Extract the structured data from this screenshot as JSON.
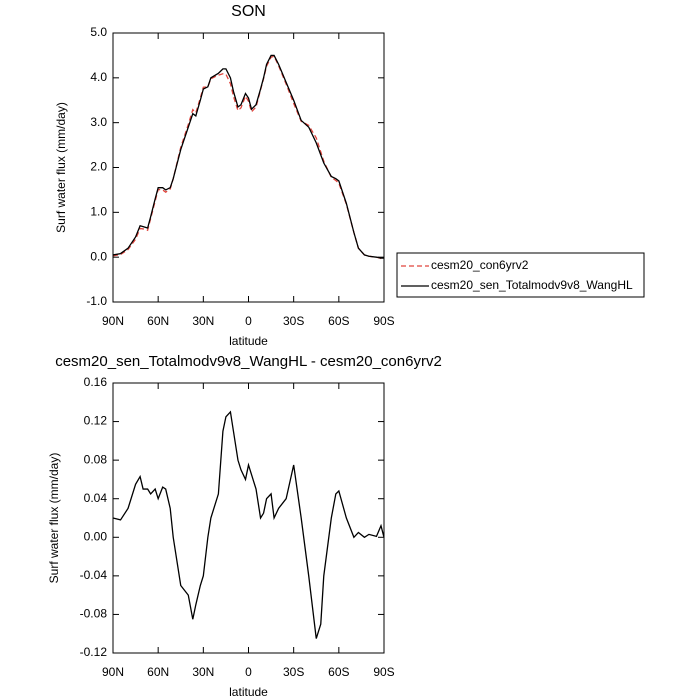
{
  "chart_data": [
    {
      "type": "line",
      "title": "SON",
      "xlabel": "latitude",
      "ylabel": "Surf water flux (mm/day)",
      "x": [
        90,
        85,
        80,
        75,
        72,
        70,
        67,
        65,
        62,
        60,
        57,
        55,
        52,
        50,
        45,
        40,
        37,
        35,
        32,
        30,
        27,
        25,
        20,
        17,
        15,
        12,
        10,
        7,
        5,
        2,
        0,
        -2,
        -5,
        -8,
        -10,
        -12,
        -15,
        -17,
        -20,
        -25,
        -30,
        -35,
        -40,
        -45,
        -50,
        -55,
        -58,
        -60,
        -65,
        -70,
        -73,
        -77,
        -80,
        -85,
        -88,
        -90
      ],
      "series": [
        {
          "name": "cesm20_con6yrv2",
          "color": "#e0443c",
          "dashed": true,
          "values": [
            0.03,
            0.06,
            0.17,
            0.4,
            0.64,
            0.63,
            0.6,
            0.86,
            1.25,
            1.51,
            1.5,
            1.45,
            1.52,
            1.75,
            2.45,
            2.96,
            3.29,
            3.22,
            3.55,
            3.79,
            3.8,
            3.98,
            4.06,
            4.09,
            4.08,
            3.87,
            3.59,
            3.27,
            3.33,
            3.59,
            3.48,
            3.24,
            3.35,
            3.73,
            3.98,
            4.26,
            4.46,
            4.48,
            4.27,
            3.86,
            3.43,
            3.03,
            2.94,
            2.66,
            2.14,
            1.78,
            1.71,
            1.65,
            1.18,
            0.55,
            0.2,
            0.05,
            0.02,
            0.0,
            -0.03,
            -0.02
          ]
        },
        {
          "name": "cesm20_sen_Totalmodv9v8_WangHL",
          "color": "#000000",
          "dashed": false,
          "values": [
            0.05,
            0.08,
            0.2,
            0.45,
            0.7,
            0.68,
            0.65,
            0.9,
            1.3,
            1.55,
            1.55,
            1.5,
            1.55,
            1.75,
            2.4,
            2.9,
            3.2,
            3.15,
            3.5,
            3.75,
            3.8,
            4.0,
            4.1,
            4.2,
            4.2,
            4.0,
            3.7,
            3.35,
            3.4,
            3.65,
            3.55,
            3.3,
            3.4,
            3.75,
            4.0,
            4.3,
            4.5,
            4.5,
            4.3,
            3.9,
            3.5,
            3.05,
            2.9,
            2.55,
            2.1,
            1.8,
            1.75,
            1.7,
            1.2,
            0.55,
            0.2,
            0.05,
            0.02,
            0.0,
            -0.02,
            -0.02
          ]
        }
      ],
      "xlim": [
        90,
        -90
      ],
      "xticks": [
        {
          "value": 90,
          "label": "90N"
        },
        {
          "value": 60,
          "label": "60N"
        },
        {
          "value": 30,
          "label": "30N"
        },
        0,
        {
          "value": -30,
          "label": "30S"
        },
        {
          "value": -60,
          "label": "60S"
        },
        {
          "value": -90,
          "label": "90S"
        }
      ],
      "ylim": [
        -1,
        5
      ],
      "yticks": [
        {
          "value": -1,
          "label": "-1.0"
        },
        {
          "value": 0,
          "label": "0.0"
        },
        {
          "value": 1,
          "label": "1.0"
        },
        {
          "value": 2,
          "label": "2.0"
        },
        {
          "value": 3,
          "label": "3.0"
        },
        {
          "value": 4,
          "label": "4.0"
        },
        {
          "value": 5,
          "label": "5.0"
        }
      ],
      "legend": "outside-right"
    },
    {
      "type": "line",
      "title": "cesm20_sen_Totalmodv9v8_WangHL - cesm20_con6yrv2",
      "xlabel": "latitude",
      "ylabel": "Surf water flux (mm/day)",
      "x": [
        90,
        85,
        80,
        75,
        72,
        70,
        67,
        65,
        62,
        60,
        57,
        55,
        52,
        50,
        45,
        40,
        37,
        35,
        32,
        30,
        27,
        25,
        20,
        17,
        15,
        12,
        10,
        7,
        5,
        2,
        0,
        -2,
        -5,
        -8,
        -10,
        -12,
        -15,
        -17,
        -20,
        -25,
        -30,
        -35,
        -40,
        -45,
        -48,
        -50,
        -55,
        -58,
        -60,
        -65,
        -70,
        -73,
        -77,
        -80,
        -85,
        -88,
        -90
      ],
      "series": [
        {
          "color": "#000000",
          "dashed": false,
          "values": [
            0.02,
            0.018,
            0.03,
            0.055,
            0.063,
            0.05,
            0.05,
            0.045,
            0.05,
            0.04,
            0.052,
            0.05,
            0.03,
            0.0,
            -0.05,
            -0.06,
            -0.085,
            -0.07,
            -0.05,
            -0.04,
            0.0,
            0.02,
            0.045,
            0.11,
            0.125,
            0.13,
            0.11,
            0.08,
            0.07,
            0.06,
            0.075,
            0.065,
            0.05,
            0.02,
            0.025,
            0.04,
            0.045,
            0.02,
            0.03,
            0.04,
            0.075,
            0.02,
            -0.04,
            -0.105,
            -0.09,
            -0.04,
            0.02,
            0.045,
            0.048,
            0.02,
            0.0,
            0.005,
            0.0,
            0.003,
            0.001,
            0.012,
            0.0
          ]
        }
      ],
      "xlim": [
        90,
        -90
      ],
      "xticks": [
        {
          "value": 90,
          "label": "90N"
        },
        {
          "value": 60,
          "label": "60N"
        },
        {
          "value": 30,
          "label": "30N"
        },
        0,
        {
          "value": -30,
          "label": "30S"
        },
        {
          "value": -60,
          "label": "60S"
        },
        {
          "value": -90,
          "label": "90S"
        }
      ],
      "ylim": [
        -0.12,
        0.16
      ],
      "yticks": [
        -0.12,
        -0.08,
        -0.04,
        {
          "value": 0,
          "label": "0.00"
        },
        0.04,
        0.08,
        0.12,
        0.16
      ]
    }
  ]
}
